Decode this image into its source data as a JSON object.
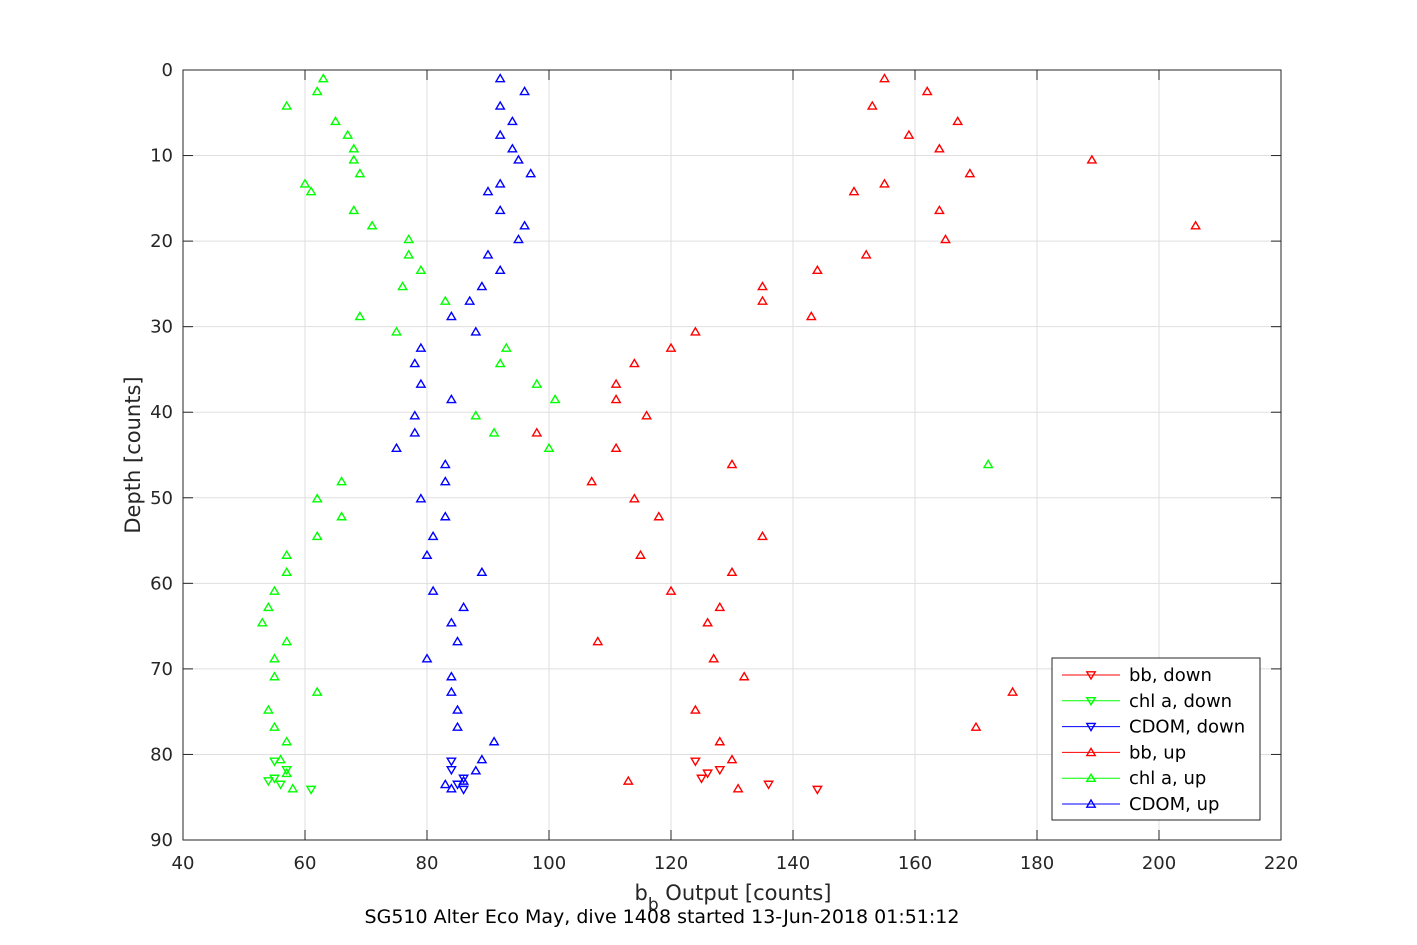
{
  "chart_data": {
    "type": "scatter",
    "title": "",
    "xlabel_main": "b",
    "xlabel_sub": "b",
    "xlabel_rest": " Output [counts]",
    "ylabel": "Depth [counts]",
    "caption": "SG510 Alter Eco May, dive 1408 started 13-Jun-2018 01:51:12",
    "xlim": [
      40,
      220
    ],
    "ylim": [
      0,
      90
    ],
    "y_reversed": true,
    "xticks": [
      "40",
      "60",
      "80",
      "100",
      "120",
      "140",
      "160",
      "180",
      "200",
      "220"
    ],
    "yticks": [
      "0",
      "10",
      "20",
      "30",
      "40",
      "50",
      "60",
      "70",
      "80",
      "90"
    ],
    "grid": true,
    "legend_position": "bottom-right",
    "series": [
      {
        "name": "bb, down",
        "color": "#ff0000",
        "marker": "triangle-down",
        "points": [
          [
            124,
            80.8
          ],
          [
            128,
            81.8
          ],
          [
            126,
            82.2
          ],
          [
            125,
            82.8
          ],
          [
            136,
            83.5
          ],
          [
            144,
            84.1
          ]
        ]
      },
      {
        "name": "chl a, down",
        "color": "#00ff00",
        "marker": "triangle-down",
        "points": [
          [
            55,
            80.8
          ],
          [
            57,
            81.8
          ],
          [
            54,
            83.1
          ],
          [
            55,
            82.8
          ],
          [
            56,
            83.5
          ],
          [
            61,
            84.1
          ]
        ]
      },
      {
        "name": "CDOM, down",
        "color": "#0000ff",
        "marker": "triangle-down",
        "points": [
          [
            84,
            80.8
          ],
          [
            84,
            81.8
          ],
          [
            86,
            82.8
          ],
          [
            85,
            83.5
          ],
          [
            86,
            84.1
          ]
        ]
      },
      {
        "name": "bb, up",
        "color": "#ff0000",
        "marker": "triangle-up",
        "points": [
          [
            155,
            1
          ],
          [
            162,
            2.5
          ],
          [
            153,
            4.2
          ],
          [
            167,
            6
          ],
          [
            159,
            7.6
          ],
          [
            164,
            9.2
          ],
          [
            189,
            10.5
          ],
          [
            169,
            12.1
          ],
          [
            155,
            13.3
          ],
          [
            150,
            14.2
          ],
          [
            164,
            16.4
          ],
          [
            206,
            18.2
          ],
          [
            165,
            19.8
          ],
          [
            152,
            21.6
          ],
          [
            144,
            23.4
          ],
          [
            135,
            25.3
          ],
          [
            135,
            27
          ],
          [
            143,
            28.8
          ],
          [
            124,
            30.6
          ],
          [
            120,
            32.5
          ],
          [
            114,
            34.3
          ],
          [
            111,
            36.7
          ],
          [
            111,
            38.5
          ],
          [
            116,
            40.4
          ],
          [
            98,
            42.4
          ],
          [
            111,
            44.2
          ],
          [
            130,
            46.1
          ],
          [
            107,
            48.1
          ],
          [
            114,
            50.1
          ],
          [
            118,
            52.2
          ],
          [
            135,
            54.5
          ],
          [
            115,
            56.7
          ],
          [
            130,
            58.7
          ],
          [
            120,
            60.9
          ],
          [
            128,
            62.8
          ],
          [
            126,
            64.6
          ],
          [
            108,
            66.8
          ],
          [
            127,
            68.8
          ],
          [
            132,
            70.9
          ],
          [
            176,
            72.7
          ],
          [
            124,
            74.8
          ],
          [
            170,
            76.8
          ],
          [
            128,
            78.5
          ],
          [
            130,
            80.6
          ],
          [
            113,
            83.1
          ],
          [
            131,
            84
          ]
        ]
      },
      {
        "name": "chl a, up",
        "color": "#00ff00",
        "marker": "triangle-up",
        "points": [
          [
            63,
            1
          ],
          [
            62,
            2.5
          ],
          [
            57,
            4.2
          ],
          [
            65,
            6
          ],
          [
            67,
            7.6
          ],
          [
            68,
            9.2
          ],
          [
            68,
            10.5
          ],
          [
            69,
            12.1
          ],
          [
            60,
            13.3
          ],
          [
            61,
            14.2
          ],
          [
            68,
            16.4
          ],
          [
            71,
            18.2
          ],
          [
            77,
            19.8
          ],
          [
            77,
            21.6
          ],
          [
            79,
            23.4
          ],
          [
            76,
            25.3
          ],
          [
            83,
            27
          ],
          [
            69,
            28.8
          ],
          [
            75,
            30.6
          ],
          [
            93,
            32.5
          ],
          [
            92,
            34.3
          ],
          [
            98,
            36.7
          ],
          [
            101,
            38.5
          ],
          [
            88,
            40.4
          ],
          [
            91,
            42.4
          ],
          [
            100,
            44.2
          ],
          [
            172,
            46.1
          ],
          [
            66,
            48.1
          ],
          [
            62,
            50.1
          ],
          [
            66,
            52.2
          ],
          [
            62,
            54.5
          ],
          [
            57,
            56.7
          ],
          [
            57,
            58.7
          ],
          [
            55,
            60.9
          ],
          [
            54,
            62.8
          ],
          [
            53,
            64.6
          ],
          [
            57,
            66.8
          ],
          [
            55,
            68.8
          ],
          [
            55,
            70.9
          ],
          [
            62,
            72.7
          ],
          [
            54,
            74.8
          ],
          [
            55,
            76.8
          ],
          [
            57,
            78.5
          ],
          [
            56,
            80.6
          ],
          [
            57,
            82.2
          ],
          [
            58,
            84
          ]
        ]
      },
      {
        "name": "CDOM, up",
        "color": "#0000ff",
        "marker": "triangle-up",
        "points": [
          [
            92,
            1
          ],
          [
            96,
            2.5
          ],
          [
            92,
            4.2
          ],
          [
            94,
            6
          ],
          [
            92,
            7.6
          ],
          [
            94,
            9.2
          ],
          [
            95,
            10.5
          ],
          [
            97,
            12.1
          ],
          [
            92,
            13.3
          ],
          [
            90,
            14.2
          ],
          [
            92,
            16.4
          ],
          [
            96,
            18.2
          ],
          [
            95,
            19.8
          ],
          [
            90,
            21.6
          ],
          [
            92,
            23.4
          ],
          [
            89,
            25.3
          ],
          [
            87,
            27
          ],
          [
            84,
            28.8
          ],
          [
            88,
            30.6
          ],
          [
            79,
            32.5
          ],
          [
            78,
            34.3
          ],
          [
            79,
            36.7
          ],
          [
            84,
            38.5
          ],
          [
            78,
            40.4
          ],
          [
            78,
            42.4
          ],
          [
            75,
            44.2
          ],
          [
            83,
            46.1
          ],
          [
            83,
            48.1
          ],
          [
            79,
            50.1
          ],
          [
            83,
            52.2
          ],
          [
            81,
            54.5
          ],
          [
            80,
            56.7
          ],
          [
            89,
            58.7
          ],
          [
            81,
            60.9
          ],
          [
            86,
            62.8
          ],
          [
            84,
            64.6
          ],
          [
            85,
            66.8
          ],
          [
            80,
            68.8
          ],
          [
            84,
            70.9
          ],
          [
            84,
            72.7
          ],
          [
            85,
            74.8
          ],
          [
            85,
            76.8
          ],
          [
            91,
            78.5
          ],
          [
            89,
            80.6
          ],
          [
            88,
            81.9
          ],
          [
            86,
            83.1
          ],
          [
            83,
            83.5
          ],
          [
            84,
            84
          ]
        ]
      }
    ]
  }
}
